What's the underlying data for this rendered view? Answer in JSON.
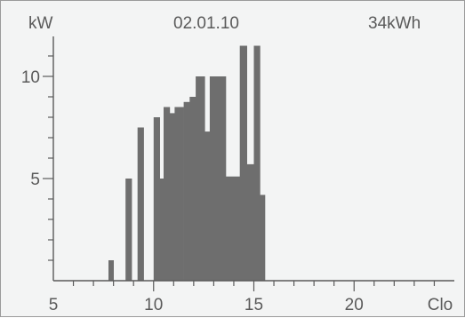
{
  "header": {
    "unit_label": "kW",
    "date": "02.01.10",
    "total_energy": "34kWh"
  },
  "chart_data": {
    "type": "bar",
    "title": "",
    "ylabel": "kW",
    "xlabel": "Clo",
    "x_ticks": [
      "5",
      "10",
      "15",
      "20",
      "Clo"
    ],
    "y_ticks": [
      "5",
      "10"
    ],
    "xlim": [
      5,
      25
    ],
    "ylim": [
      0,
      12
    ],
    "bar_color": "#6e6e6e",
    "axis_color": "#5a5a5a",
    "bars": [
      {
        "x0": 7.75,
        "x1": 8.0,
        "y": 1.0
      },
      {
        "x0": 8.6,
        "x1": 8.9,
        "y": 5.0
      },
      {
        "x0": 9.2,
        "x1": 9.5,
        "y": 7.5
      },
      {
        "x0": 10.0,
        "x1": 10.3,
        "y": 8.0
      },
      {
        "x0": 10.3,
        "x1": 10.5,
        "y": 5.0
      },
      {
        "x0": 10.5,
        "x1": 10.8,
        "y": 8.5
      },
      {
        "x0": 10.8,
        "x1": 11.05,
        "y": 8.2
      },
      {
        "x0": 11.05,
        "x1": 11.5,
        "y": 8.5
      },
      {
        "x0": 11.5,
        "x1": 11.8,
        "y": 8.75
      },
      {
        "x0": 11.8,
        "x1": 12.1,
        "y": 9.0
      },
      {
        "x0": 12.1,
        "x1": 12.55,
        "y": 10.0
      },
      {
        "x0": 12.55,
        "x1": 12.8,
        "y": 7.3
      },
      {
        "x0": 12.8,
        "x1": 13.2,
        "y": 10.0
      },
      {
        "x0": 13.2,
        "x1": 13.6,
        "y": 10.0
      },
      {
        "x0": 13.6,
        "x1": 14.3,
        "y": 5.1
      },
      {
        "x0": 14.3,
        "x1": 14.65,
        "y": 11.5
      },
      {
        "x0": 14.65,
        "x1": 15.0,
        "y": 5.7
      },
      {
        "x0": 15.0,
        "x1": 15.3,
        "y": 11.5
      },
      {
        "x0": 15.3,
        "x1": 15.55,
        "y": 4.2
      }
    ]
  }
}
